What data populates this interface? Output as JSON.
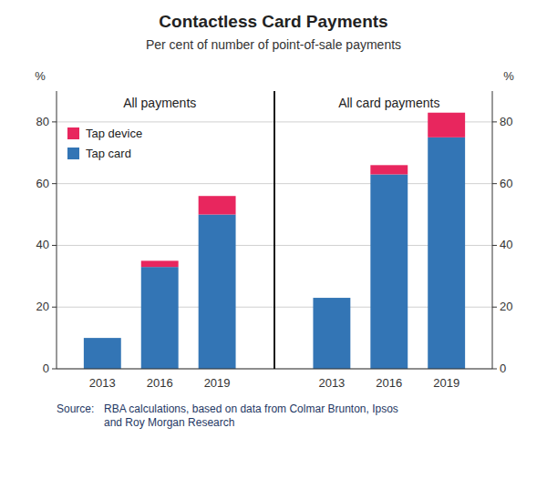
{
  "chart_data": {
    "type": "bar",
    "title": "Contactless Card Payments",
    "subtitle": "Per cent of number of point-of-sale payments",
    "ylabel": "%",
    "y2label": "%",
    "groups": [
      "All payments",
      "All card payments"
    ],
    "categories": [
      "2013",
      "2016",
      "2019",
      "2013",
      "2016",
      "2019"
    ],
    "series": [
      {
        "name": "Tap card",
        "color": "#3375b5",
        "values": [
          10,
          33,
          50,
          23,
          63,
          75
        ]
      },
      {
        "name": "Tap device",
        "color": "#e8265e",
        "values": [
          0,
          2,
          6,
          0,
          3,
          8
        ]
      }
    ],
    "stacked": true,
    "ylim": [
      0,
      90
    ],
    "yticks": [
      0,
      20,
      40,
      60,
      80
    ],
    "y2lim": [
      0,
      90
    ],
    "y2ticks": [
      0,
      20,
      40,
      60,
      80
    ],
    "grid": true,
    "legend": "upper left",
    "source_label": "Source:",
    "source_text": "RBA calculations, based on data from Colmar Brunton, Ipsos\nand Roy Morgan Research"
  }
}
